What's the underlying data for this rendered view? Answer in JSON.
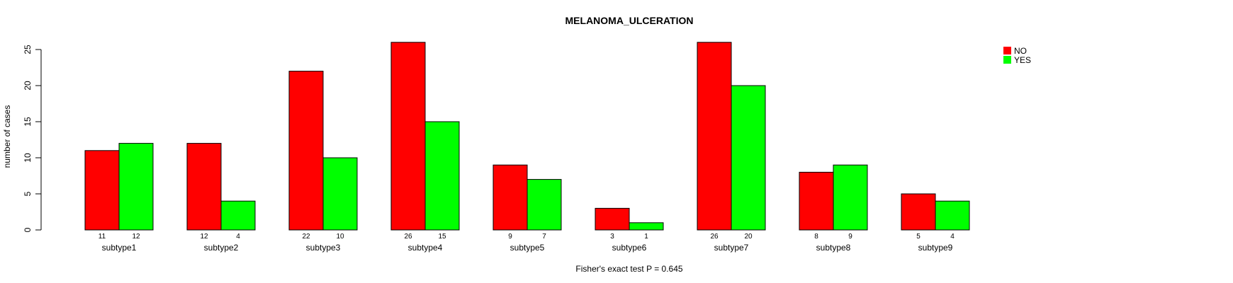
{
  "chart_data": {
    "type": "bar",
    "title": "MELANOMA_ULCERATION",
    "xlabel": "Fisher's exact test P = 0.645",
    "ylabel": "number of cases",
    "ylim": [
      0,
      26
    ],
    "yticks": [
      0,
      5,
      10,
      15,
      20,
      25
    ],
    "categories": [
      "subtype1",
      "subtype2",
      "subtype3",
      "subtype4",
      "subtype5",
      "subtype6",
      "subtype7",
      "subtype8",
      "subtype9"
    ],
    "series": [
      {
        "name": "NO",
        "color": "#ff0000",
        "values": [
          11,
          12,
          22,
          26,
          9,
          3,
          26,
          8,
          5
        ]
      },
      {
        "name": "YES",
        "color": "#00ff00",
        "values": [
          12,
          4,
          10,
          15,
          7,
          1,
          20,
          9,
          4
        ]
      }
    ],
    "legend": "top-right",
    "grid": false
  }
}
